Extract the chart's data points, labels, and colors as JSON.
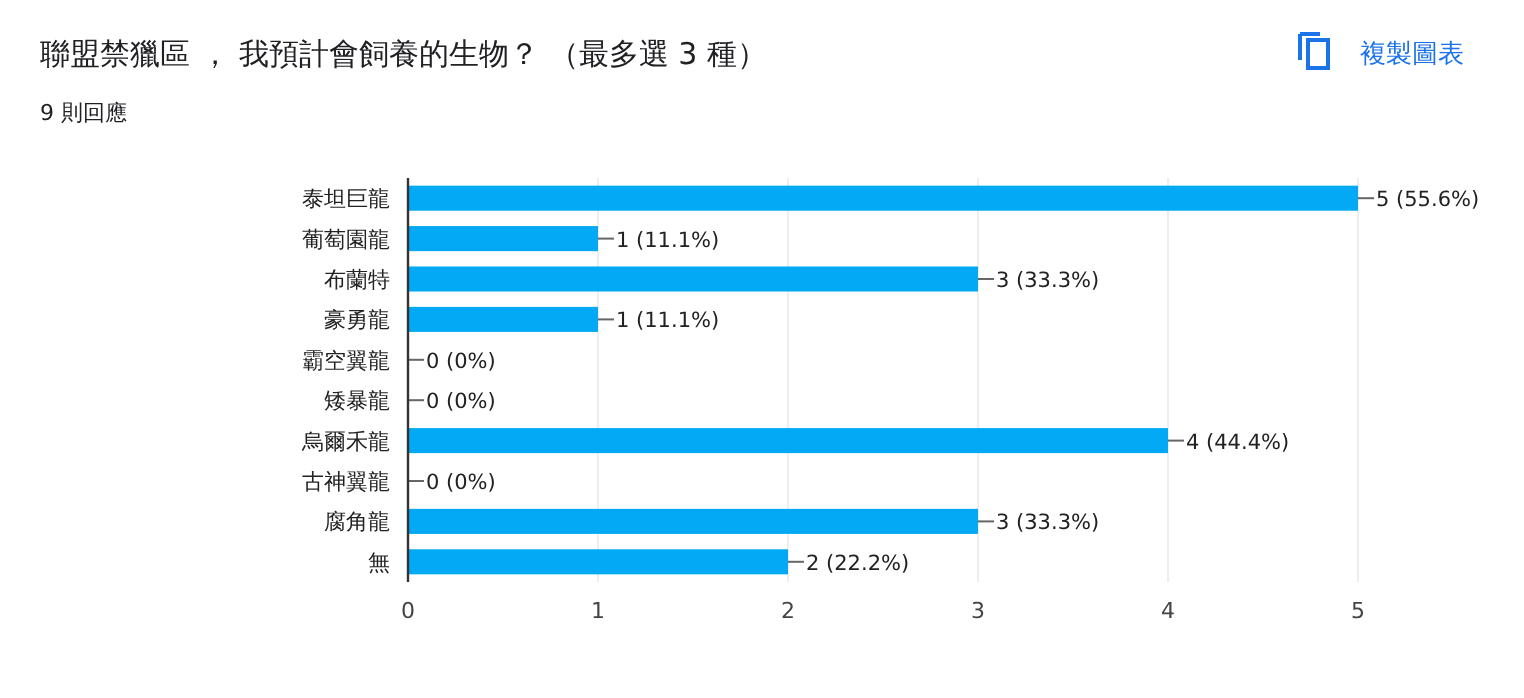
{
  "chart_data": {
    "type": "bar",
    "orientation": "horizontal",
    "title": "聯盟禁獵區 ， 我預計會飼養的生物？ （最多選 3 種）",
    "subtitle": "9 則回應",
    "annotations": [
      "複製圖表"
    ],
    "categories": [
      "泰坦巨龍",
      "葡萄園龍",
      "布蘭特",
      "豪勇龍",
      "霸空翼龍",
      "矮暴龍",
      "烏爾禾龍",
      "古神翼龍",
      "腐角龍",
      "無"
    ],
    "values": [
      5,
      1,
      3,
      1,
      0,
      0,
      4,
      0,
      3,
      2
    ],
    "value_labels": [
      "5 (55.6%)",
      "1 (11.1%)",
      "3 (33.3%)",
      "1 (11.1%)",
      "0 (0%)",
      "0 (0%)",
      "4 (44.4%)",
      "0 (0%)",
      "3 (33.3%)",
      "2 (22.2%)"
    ],
    "color": "#03a9f4",
    "xlim": [
      0,
      5
    ],
    "xticks": [
      0,
      1,
      2,
      3,
      4,
      5
    ],
    "grid": "x"
  }
}
